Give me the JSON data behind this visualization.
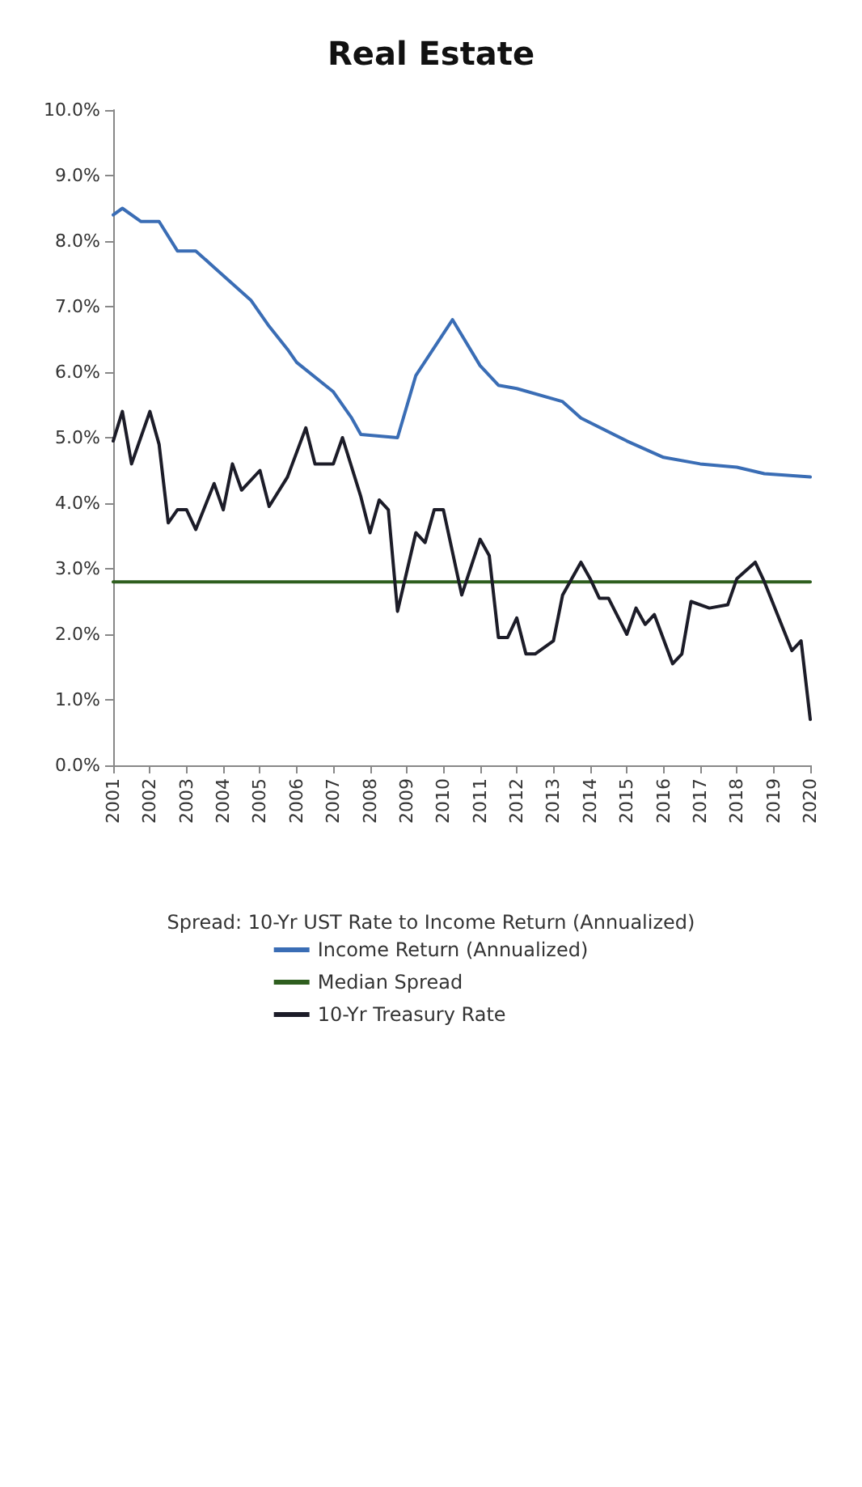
{
  "chart_data": {
    "type": "line",
    "title": "Real Estate",
    "legend_title": "Spread: 10-Yr UST Rate to Income Return (Annualized)",
    "xlim": [
      2001,
      2020
    ],
    "xticks": [
      2001,
      2002,
      2003,
      2004,
      2005,
      2006,
      2007,
      2008,
      2009,
      2010,
      2011,
      2012,
      2013,
      2014,
      2015,
      2016,
      2017,
      2018,
      2019,
      2020
    ],
    "ylim": [
      0,
      10
    ],
    "yticks": [
      {
        "value": 0,
        "label": "0.0%"
      },
      {
        "value": 1,
        "label": "1.0%"
      },
      {
        "value": 2,
        "label": "2.0%"
      },
      {
        "value": 3,
        "label": "3.0%"
      },
      {
        "value": 4,
        "label": "4.0%"
      },
      {
        "value": 5,
        "label": "5.0%"
      },
      {
        "value": 6,
        "label": "6.0%"
      },
      {
        "value": 7,
        "label": "7.0%"
      },
      {
        "value": 8,
        "label": "8.0%"
      },
      {
        "value": 9,
        "label": "9.0%"
      },
      {
        "value": 10,
        "label": "10.0%"
      }
    ],
    "grid": false,
    "legend": "bottom",
    "marker": "none",
    "line_style": "solid",
    "series": [
      {
        "name": "Income Return (Annualized)",
        "color": "#3a6db5",
        "x": [
          2001,
          2001.25,
          2001.75,
          2002.25,
          2002.75,
          2003.25,
          2003.75,
          2004.25,
          2004.75,
          2005.25,
          2005.75,
          2006,
          2007,
          2007.5,
          2007.75,
          2008.75,
          2009.25,
          2010.25,
          2011,
          2011.5,
          2012,
          2013.25,
          2013.75,
          2015,
          2016,
          2017,
          2018,
          2018.75,
          2020
        ],
        "values": [
          8.4,
          8.5,
          8.3,
          8.3,
          7.85,
          7.85,
          7.6,
          7.35,
          7.1,
          6.7,
          6.35,
          6.15,
          5.7,
          5.3,
          5.05,
          5.0,
          5.95,
          6.8,
          6.1,
          5.8,
          5.75,
          5.55,
          5.3,
          4.95,
          4.7,
          4.6,
          4.55,
          4.45,
          4.4
        ]
      },
      {
        "name": "Median Spread",
        "color": "#2e5e1e",
        "x": [
          2001,
          2020
        ],
        "values": [
          2.8,
          2.8
        ]
      },
      {
        "name": "10-Yr Treasury Rate",
        "color": "#1c1c28",
        "x": [
          2001,
          2001.25,
          2001.5,
          2002,
          2002.25,
          2002.5,
          2002.75,
          2003,
          2003.25,
          2003.75,
          2004,
          2004.25,
          2004.5,
          2005,
          2005.25,
          2005.75,
          2006.25,
          2006.5,
          2007,
          2007.25,
          2007.75,
          2008,
          2008.25,
          2008.5,
          2008.75,
          2009.25,
          2009.5,
          2009.75,
          2010,
          2010.5,
          2011,
          2011.25,
          2011.5,
          2011.75,
          2012,
          2012.25,
          2012.5,
          2013,
          2013.25,
          2013.5,
          2013.75,
          2014,
          2014.25,
          2014.5,
          2015,
          2015.25,
          2015.5,
          2015.75,
          2016.25,
          2016.5,
          2016.75,
          2017.25,
          2017.75,
          2018,
          2018.5,
          2018.75,
          2019.5,
          2019.75,
          2020
        ],
        "values": [
          4.95,
          5.4,
          4.6,
          5.4,
          4.9,
          3.7,
          3.9,
          3.9,
          3.6,
          4.3,
          3.9,
          4.6,
          4.2,
          4.5,
          3.95,
          4.4,
          5.15,
          4.6,
          4.6,
          5.0,
          4.1,
          3.55,
          4.05,
          3.9,
          2.35,
          3.55,
          3.4,
          3.9,
          3.9,
          2.6,
          3.45,
          3.2,
          1.95,
          1.95,
          2.25,
          1.7,
          1.7,
          1.9,
          2.6,
          2.85,
          3.1,
          2.85,
          2.55,
          2.55,
          2.0,
          2.4,
          2.15,
          2.3,
          1.55,
          1.7,
          2.5,
          2.4,
          2.45,
          2.85,
          3.1,
          2.8,
          1.75,
          1.9,
          0.7
        ]
      }
    ]
  }
}
